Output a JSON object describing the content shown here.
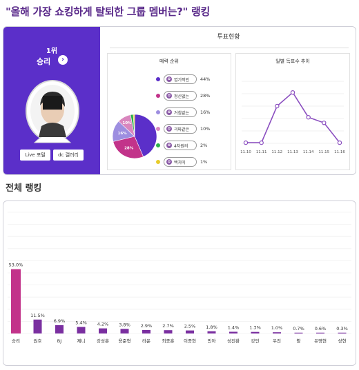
{
  "page": {
    "title": "\"올해 가장 쇼킹하게 탈퇴한 그룹 멤버는?\" 랭킹"
  },
  "winner": {
    "rank_label": "1위",
    "name": "승리",
    "arrow_icon": "chevron-right-icon",
    "live_button": "Live 포털",
    "gallery_button": "dc 갤러리"
  },
  "vote": {
    "header": "투표현황",
    "charm_title": "매력 순위",
    "trend_title": "일별 득표수 추이",
    "items": [
      {
        "label": "엽기적인",
        "pct": "44%",
        "value": 44,
        "color": "#5b2fc9"
      },
      {
        "label": "정신없는",
        "pct": "28%",
        "value": 28,
        "color": "#c2338a"
      },
      {
        "label": "거침없는",
        "pct": "16%",
        "value": 16,
        "color": "#9d8ee0"
      },
      {
        "label": "괴짜같은",
        "pct": "10%",
        "value": 10,
        "color": "#d986be"
      },
      {
        "label": "4차원의",
        "pct": "2%",
        "value": 2,
        "color": "#2bb14a"
      },
      {
        "label": "백치미",
        "pct": "1%",
        "value": 1,
        "color": "#e8cc2a"
      }
    ],
    "pie_labels": [
      "28%",
      "16%",
      "10%"
    ]
  },
  "ranking": {
    "title": "전체 랭킹"
  },
  "chart_data": [
    {
      "type": "pie",
      "title": "매력 순위",
      "categories": [
        "엽기적인",
        "정신없는",
        "거침없는",
        "괴짜같은",
        "4차원의",
        "백치미"
      ],
      "values": [
        44,
        28,
        16,
        10,
        2,
        1
      ]
    },
    {
      "type": "line",
      "title": "일별 득표수 추이",
      "x": [
        "11.10",
        "11.11",
        "11.12",
        "11.13",
        "11.14",
        "11.15",
        "11.16"
      ],
      "values": [
        1,
        1,
        60,
        82,
        42,
        33,
        1
      ],
      "ylim": [
        0,
        100
      ],
      "grid": true,
      "color": "#8b4fc0"
    },
    {
      "type": "bar",
      "title": "전체 랭킹",
      "categories": [
        "승리",
        "원호",
        "BJ",
        "제니",
        "강성훈",
        "용준형",
        "라운",
        "최종훈",
        "이종현",
        "민아",
        "성진환",
        "강인",
        "우진",
        "활",
        "유영현",
        "성현"
      ],
      "values": [
        53.0,
        11.5,
        6.9,
        5.4,
        4.2,
        3.8,
        2.9,
        2.7,
        2.5,
        1.8,
        1.4,
        1.3,
        1.0,
        0.7,
        0.6,
        0.3
      ],
      "labels": [
        "53.0%",
        "11.5%",
        "6.9%",
        "5.4%",
        "4.2%",
        "3.8%",
        "2.9%",
        "2.7%",
        "2.5%",
        "1.8%",
        "1.4%",
        "1.3%",
        "1.0%",
        "0.7%",
        "0.6%",
        "0.3%"
      ],
      "ylim": [
        0,
        100
      ],
      "grid": true,
      "top_color": "#c2338a",
      "other_color": "#7a2fa0"
    }
  ]
}
